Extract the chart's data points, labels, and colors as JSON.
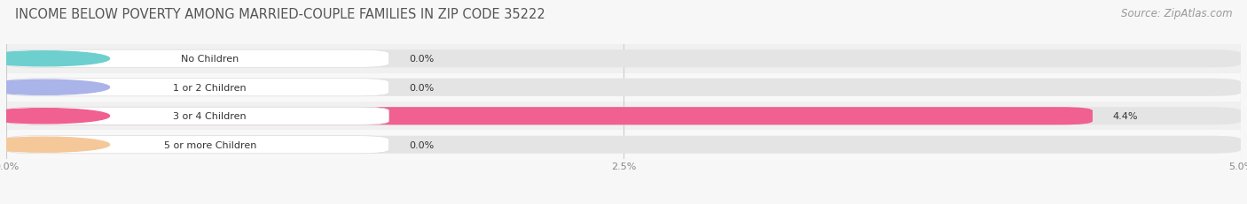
{
  "title": "INCOME BELOW POVERTY AMONG MARRIED-COUPLE FAMILIES IN ZIP CODE 35222",
  "source": "Source: ZipAtlas.com",
  "categories": [
    "No Children",
    "1 or 2 Children",
    "3 or 4 Children",
    "5 or more Children"
  ],
  "values": [
    0.0,
    0.0,
    4.4,
    0.0
  ],
  "bar_colors": [
    "#6ecfcf",
    "#aab4e8",
    "#f06090",
    "#f5c89a"
  ],
  "xlim": [
    0,
    5.0
  ],
  "xticks": [
    0.0,
    2.5,
    5.0
  ],
  "xticklabels": [
    "0.0%",
    "2.5%",
    "5.0%"
  ],
  "background_color": "#f7f7f7",
  "bar_bg_color": "#e4e4e4",
  "row_bg_colors": [
    "#f0f0f0",
    "#f8f8f8"
  ],
  "title_fontsize": 10.5,
  "source_fontsize": 8.5,
  "bar_label_fontsize": 8,
  "value_label_fontsize": 8
}
